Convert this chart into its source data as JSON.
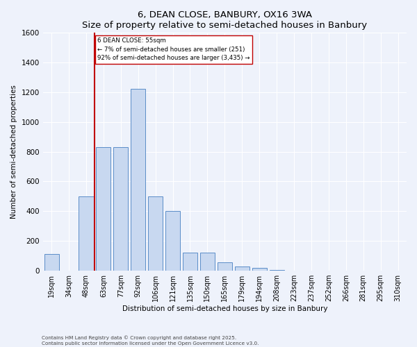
{
  "title": "6, DEAN CLOSE, BANBURY, OX16 3WA",
  "subtitle": "Size of property relative to semi-detached houses in Banbury",
  "xlabel": "Distribution of semi-detached houses by size in Banbury",
  "ylabel": "Number of semi-detached properties",
  "bar_labels": [
    "19sqm",
    "34sqm",
    "48sqm",
    "63sqm",
    "77sqm",
    "92sqm",
    "106sqm",
    "121sqm",
    "135sqm",
    "150sqm",
    "165sqm",
    "179sqm",
    "194sqm",
    "208sqm",
    "223sqm",
    "237sqm",
    "252sqm",
    "266sqm",
    "281sqm",
    "295sqm",
    "310sqm"
  ],
  "bar_values": [
    110,
    2,
    500,
    830,
    830,
    1220,
    500,
    400,
    120,
    120,
    55,
    30,
    18,
    5,
    0,
    0,
    0,
    0,
    0,
    0,
    0
  ],
  "bar_color": "#c8d8f0",
  "bar_edge_color": "#5b8dc8",
  "vline_color": "#c00000",
  "annotation_text": "6 DEAN CLOSE: 55sqm\n← 7% of semi-detached houses are smaller (251)\n92% of semi-detached houses are larger (3,435) →",
  "annotation_box_color": "#ffffff",
  "annotation_box_edge": "#c00000",
  "ylim": [
    0,
    1600
  ],
  "yticks": [
    0,
    200,
    400,
    600,
    800,
    1000,
    1200,
    1400,
    1600
  ],
  "footnote1": "Contains HM Land Registry data © Crown copyright and database right 2025.",
  "footnote2": "Contains public sector information licensed under the Open Government Licence v3.0.",
  "bg_color": "#eef2fb",
  "grid_color": "#ffffff"
}
